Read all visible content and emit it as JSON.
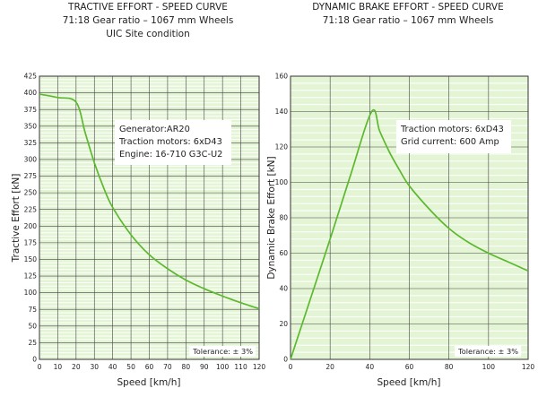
{
  "chart_data": [
    {
      "type": "line",
      "title": [
        "TRACTIVE EFFORT - SPEED CURVE",
        "71:18 Gear ratio – 1067 mm Wheels",
        "UIC Site condition"
      ],
      "xlabel": "Speed [km/h]",
      "ylabel": "Tractive Effort [kN]",
      "xlim": [
        0,
        120
      ],
      "ylim": [
        0,
        425
      ],
      "xticks": [
        0,
        10,
        20,
        30,
        40,
        50,
        60,
        70,
        80,
        90,
        100,
        110,
        120
      ],
      "yticks": [
        0,
        25,
        50,
        75,
        100,
        125,
        150,
        175,
        200,
        225,
        250,
        275,
        300,
        325,
        350,
        375,
        400,
        425
      ],
      "grid": true,
      "series": [
        {
          "name": "Tractive effort",
          "x": [
            0,
            10,
            20,
            25,
            30,
            35,
            40,
            50,
            60,
            70,
            80,
            90,
            100,
            110,
            120
          ],
          "y": [
            398,
            393,
            386,
            340,
            295,
            258,
            228,
            187,
            157,
            136,
            119,
            106,
            95,
            85,
            76
          ]
        }
      ],
      "info_box": [
        "Generator:AR20",
        "Traction motors: 6xD43",
        "Engine: 16-710 G3C-U2"
      ],
      "note": "Tolerance: ± 3%"
    },
    {
      "type": "line",
      "title": [
        "DYNAMIC BRAKE EFFORT - SPEED CURVE",
        "71:18 Gear ratio – 1067 mm Wheels"
      ],
      "xlabel": "Speed [km/h]",
      "ylabel": "Dynamic Brake Effort [kN]",
      "xlim": [
        0,
        120
      ],
      "ylim": [
        0,
        160
      ],
      "xticks": [
        0,
        20,
        40,
        60,
        80,
        100,
        120
      ],
      "yticks": [
        0,
        20,
        40,
        60,
        80,
        100,
        120,
        140,
        160
      ],
      "grid": true,
      "series": [
        {
          "name": "Dynamic brake effort",
          "x": [
            0,
            10,
            20,
            30,
            41,
            45,
            50,
            55,
            60,
            70,
            80,
            90,
            100,
            110,
            120
          ],
          "y": [
            0,
            34,
            68,
            103,
            140,
            129,
            117,
            107,
            98,
            85,
            74,
            66,
            60,
            55,
            50
          ]
        }
      ],
      "info_box": [
        "Traction motors: 6xD43",
        "Grid current: 600 Amp"
      ],
      "note": "Tolerance: ± 3%"
    }
  ],
  "colors": {
    "plot_bg": "#e4f5d6",
    "grid_major": "#444444",
    "grid_minor": "#ffffff",
    "curve": "#5cb82e",
    "frame": "#333333"
  }
}
